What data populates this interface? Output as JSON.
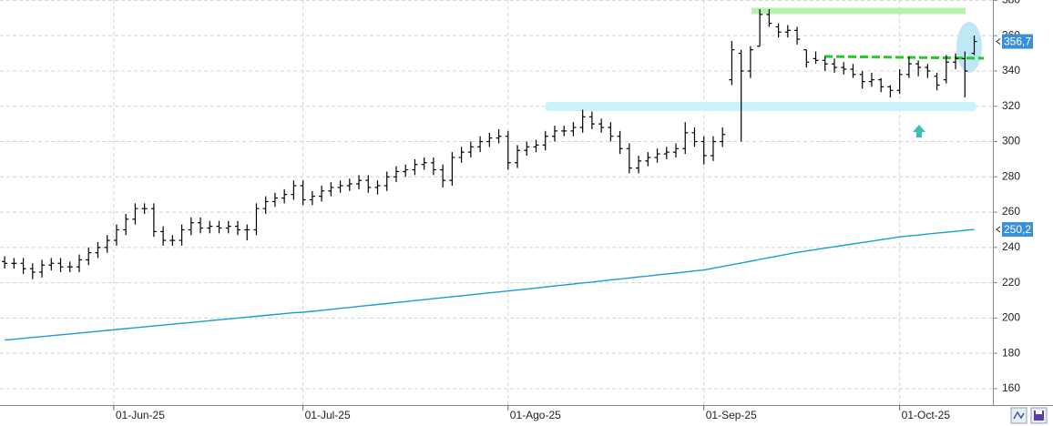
{
  "chart_data": {
    "type": "ohlc",
    "xlim": [
      -0.5,
      106
    ],
    "xticks": [
      {
        "value": 11.7,
        "label": "01-Jun-25"
      },
      {
        "value": 32,
        "label": "01-Jul-25"
      },
      {
        "value": 54,
        "label": "01-Ago-25"
      },
      {
        "value": 75,
        "label": "01-Sep-25"
      },
      {
        "value": 96,
        "label": "01-Oct-25"
      }
    ],
    "ylim": [
      150.7,
      380.2
    ],
    "yticks": [
      160,
      180,
      200,
      220,
      240,
      260,
      280,
      300,
      320,
      340,
      360,
      380
    ],
    "grid": true,
    "ohlc": {
      "color": "#000000",
      "open": [
        232,
        231,
        231,
        228,
        226,
        230,
        231,
        229,
        229,
        233,
        237,
        240,
        244,
        250,
        256,
        262,
        262,
        249,
        244,
        244,
        250,
        254,
        251,
        252,
        251,
        252,
        250,
        250,
        262,
        266,
        268,
        270,
        275,
        267,
        269,
        272,
        274,
        275,
        276,
        278,
        274,
        275,
        280,
        283,
        284,
        287,
        288,
        284,
        278,
        291,
        294,
        297,
        300,
        302,
        303,
        288,
        295,
        297,
        298,
        303,
        306,
        306,
        308,
        314,
        310,
        308,
        303,
        296,
        285,
        289,
        291,
        293,
        294,
        296,
        305,
        300,
        292,
        300,
        335,
        350,
        340,
        354,
        372,
        365,
        362,
        363,
        352,
        347,
        346,
        344,
        342,
        341,
        338,
        334,
        335,
        331,
        329,
        338,
        344,
        342,
        337,
        335,
        345,
        347,
        350
      ],
      "high": [
        235,
        234,
        234,
        231,
        233,
        234,
        234,
        232,
        236,
        240,
        243,
        247,
        253,
        259,
        265,
        265,
        265,
        252,
        247,
        253,
        257,
        257,
        255,
        255,
        255,
        255,
        253,
        265,
        269,
        271,
        273,
        278,
        278,
        272,
        275,
        277,
        278,
        279,
        281,
        281,
        278,
        283,
        286,
        287,
        290,
        291,
        291,
        287,
        294,
        297,
        300,
        303,
        305,
        307,
        306,
        298,
        300,
        301,
        306,
        309,
        309,
        311,
        318,
        317,
        313,
        311,
        306,
        299,
        292,
        294,
        296,
        297,
        299,
        311,
        308,
        303,
        303,
        308,
        357,
        352,
        354,
        375,
        375,
        367,
        366,
        365,
        352,
        351,
        348,
        347,
        345,
        344,
        340,
        339,
        336,
        332,
        341,
        348,
        346,
        344,
        339,
        349,
        350,
        351,
        360
      ],
      "low": [
        228,
        228,
        225,
        222,
        223,
        227,
        226,
        226,
        226,
        230,
        234,
        237,
        241,
        247,
        253,
        259,
        246,
        241,
        241,
        241,
        247,
        248,
        248,
        248,
        248,
        247,
        244,
        247,
        259,
        263,
        265,
        267,
        264,
        264,
        266,
        269,
        271,
        272,
        273,
        271,
        270,
        272,
        277,
        280,
        281,
        284,
        281,
        274,
        275,
        288,
        291,
        294,
        297,
        299,
        284,
        285,
        292,
        294,
        295,
        300,
        303,
        303,
        305,
        307,
        305,
        300,
        293,
        282,
        282,
        286,
        288,
        290,
        291,
        293,
        297,
        287,
        289,
        297,
        332,
        300,
        336,
        354,
        365,
        359,
        359,
        355,
        342,
        344,
        340,
        339,
        338,
        336,
        330,
        331,
        328,
        325,
        327,
        336,
        337,
        336,
        329,
        333,
        341,
        325,
        349
      ],
      "close": [
        231,
        231,
        228,
        226,
        230,
        231,
        229,
        229,
        233,
        237,
        240,
        244,
        250,
        256,
        262,
        262,
        249,
        244,
        244,
        250,
        254,
        251,
        252,
        251,
        252,
        250,
        250,
        262,
        266,
        268,
        270,
        275,
        267,
        269,
        272,
        274,
        275,
        276,
        278,
        274,
        275,
        280,
        283,
        284,
        287,
        288,
        284,
        278,
        291,
        294,
        297,
        300,
        302,
        303,
        288,
        295,
        297,
        298,
        303,
        306,
        306,
        308,
        314,
        310,
        308,
        303,
        296,
        285,
        289,
        291,
        293,
        294,
        296,
        305,
        300,
        292,
        300,
        304,
        352,
        340,
        352,
        372,
        367,
        362,
        363,
        358,
        345,
        346,
        344,
        342,
        341,
        338,
        334,
        335,
        331,
        329,
        338,
        344,
        342,
        340,
        332,
        345,
        347,
        340,
        356.7
      ]
    },
    "moving_average": {
      "color": "#1a9fd0",
      "values": [
        187.5,
        188,
        188.5,
        189,
        189.5,
        190,
        190.5,
        191,
        191.5,
        192,
        192.5,
        193,
        193.5,
        194,
        194.5,
        195,
        195.5,
        196,
        196.5,
        197,
        197.5,
        198,
        198.5,
        199,
        199.5,
        200,
        200.5,
        201,
        201.5,
        202,
        202.5,
        203,
        203.3,
        203.8,
        204.4,
        204.9,
        205.5,
        206,
        206.6,
        207.1,
        207.7,
        208.2,
        208.8,
        209.3,
        209.9,
        210.4,
        211,
        211.5,
        212.1,
        212.6,
        213.2,
        213.7,
        214.3,
        214.8,
        215.3,
        215.9,
        216.4,
        217,
        217.6,
        218.2,
        218.7,
        219.3,
        219.9,
        220.4,
        221,
        221.6,
        222.1,
        222.7,
        223.3,
        223.8,
        224.4,
        225,
        225.5,
        226.1,
        226.7,
        227.2,
        228.2,
        229.2,
        230.2,
        231.2,
        232.2,
        233.2,
        234.2,
        235.2,
        236.2,
        237.2,
        238,
        238.8,
        239.6,
        240.4,
        241.2,
        242,
        242.8,
        243.6,
        244.4,
        245.2,
        246,
        246.5,
        247,
        247.6,
        248.1,
        248.6,
        249.1,
        249.7,
        250.2
      ]
    },
    "price_labels": [
      {
        "value": 356.7,
        "label": "356,7",
        "color": "#3a8fd9"
      },
      {
        "value": 250.2,
        "label": "250,2",
        "color": "#3a8fd9"
      }
    ]
  }
}
